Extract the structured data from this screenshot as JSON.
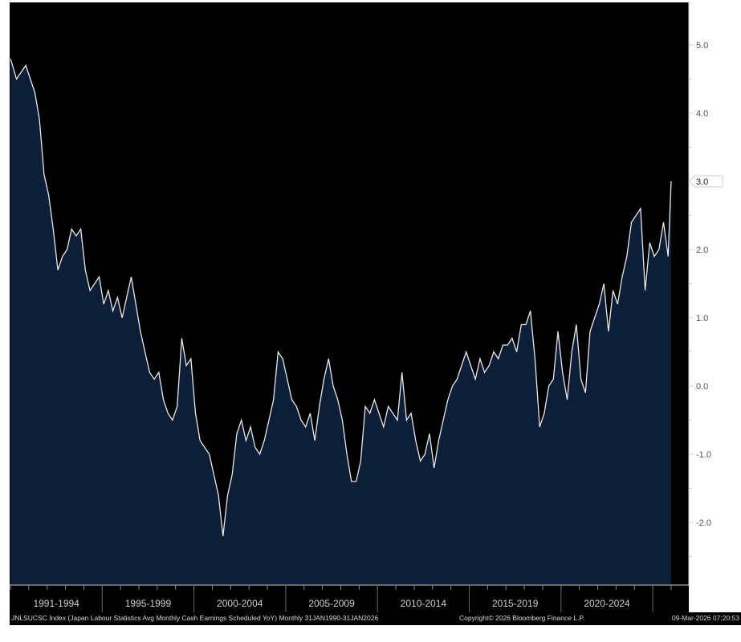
{
  "chart_data": {
    "type": "area",
    "title": "",
    "xlabel": "",
    "ylabel": "",
    "frequency_of_points": "quarterly approximation of monthly series",
    "x_start": "1990-01",
    "x_end": "2026-01",
    "ylim": [
      -2.9,
      5.5
    ],
    "y_ticks": [
      "5.0",
      "4.0",
      "2.0",
      "1.0",
      "0.0",
      "-1.0",
      "-2.0"
    ],
    "last_value_label": "3.0",
    "x_tick_labels": [
      "1991-1994",
      "1995-1999",
      "2000-2004",
      "2005-2009",
      "2010-2014",
      "2015-2019",
      "2020-2024"
    ],
    "grid": false,
    "colors": {
      "background": "#000000",
      "fill": "#0c1e38",
      "line": "#e8e8e8",
      "axis_text": "#cfcfcf"
    },
    "series": [
      {
        "x": [
          "1990-Q1",
          "1990-Q2",
          "1990-Q3",
          "1990-Q4",
          "1991-Q1",
          "1991-Q2",
          "1991-Q3",
          "1991-Q4",
          "1992-Q1",
          "1992-Q2",
          "1992-Q3",
          "1992-Q4",
          "1993-Q1",
          "1993-Q2",
          "1993-Q3",
          "1993-Q4",
          "1994-Q1",
          "1994-Q2",
          "1994-Q3",
          "1994-Q4",
          "1995-Q1",
          "1995-Q2",
          "1995-Q3",
          "1995-Q4",
          "1996-Q1",
          "1996-Q2",
          "1996-Q3",
          "1996-Q4",
          "1997-Q1",
          "1997-Q2",
          "1997-Q3",
          "1997-Q4",
          "1998-Q1",
          "1998-Q2",
          "1998-Q3",
          "1998-Q4",
          "1999-Q1",
          "1999-Q2",
          "1999-Q3",
          "1999-Q4",
          "2000-Q1",
          "2000-Q2",
          "2000-Q3",
          "2000-Q4",
          "2001-Q1",
          "2001-Q2",
          "2001-Q3",
          "2001-Q4",
          "2002-Q1",
          "2002-Q2",
          "2002-Q3",
          "2002-Q4",
          "2003-Q1",
          "2003-Q2",
          "2003-Q3",
          "2003-Q4",
          "2004-Q1",
          "2004-Q2",
          "2004-Q3",
          "2004-Q4",
          "2005-Q1",
          "2005-Q2",
          "2005-Q3",
          "2005-Q4",
          "2006-Q1",
          "2006-Q2",
          "2006-Q3",
          "2006-Q4",
          "2007-Q1",
          "2007-Q2",
          "2007-Q3",
          "2007-Q4",
          "2008-Q1",
          "2008-Q2",
          "2008-Q3",
          "2008-Q4",
          "2009-Q1",
          "2009-Q2",
          "2009-Q3",
          "2009-Q4",
          "2010-Q1",
          "2010-Q2",
          "2010-Q3",
          "2010-Q4",
          "2011-Q1",
          "2011-Q2",
          "2011-Q3",
          "2011-Q4",
          "2012-Q1",
          "2012-Q2",
          "2012-Q3",
          "2012-Q4",
          "2013-Q1",
          "2013-Q2",
          "2013-Q3",
          "2013-Q4",
          "2014-Q1",
          "2014-Q2",
          "2014-Q3",
          "2014-Q4",
          "2015-Q1",
          "2015-Q2",
          "2015-Q3",
          "2015-Q4",
          "2016-Q1",
          "2016-Q2",
          "2016-Q3",
          "2016-Q4",
          "2017-Q1",
          "2017-Q2",
          "2017-Q3",
          "2017-Q4",
          "2018-Q1",
          "2018-Q2",
          "2018-Q3",
          "2018-Q4",
          "2019-Q1",
          "2019-Q2",
          "2019-Q3",
          "2019-Q4",
          "2020-Q1",
          "2020-Q2",
          "2020-Q3",
          "2020-Q4",
          "2021-Q1",
          "2021-Q2",
          "2021-Q3",
          "2021-Q4",
          "2022-Q1",
          "2022-Q2",
          "2022-Q3",
          "2022-Q4",
          "2023-Q1",
          "2023-Q2",
          "2023-Q3",
          "2023-Q4",
          "2024-Q1",
          "2024-Q2",
          "2024-Q3",
          "2024-Q4",
          "2025-Q1",
          "2025-Q2",
          "2025-Q3",
          "2025-Q4",
          "2026-01"
        ],
        "values": [
          4.8,
          4.5,
          4.6,
          4.7,
          4.5,
          4.3,
          3.9,
          3.1,
          2.8,
          2.3,
          1.7,
          1.9,
          2.0,
          2.3,
          2.2,
          2.3,
          1.7,
          1.4,
          1.5,
          1.6,
          1.2,
          1.4,
          1.1,
          1.3,
          1.0,
          1.3,
          1.6,
          1.2,
          0.8,
          0.5,
          0.2,
          0.1,
          0.2,
          -0.2,
          -0.4,
          -0.5,
          -0.3,
          0.7,
          0.3,
          0.4,
          -0.4,
          -0.8,
          -0.9,
          -1.0,
          -1.3,
          -1.6,
          -2.2,
          -1.6,
          -1.3,
          -0.7,
          -0.5,
          -0.8,
          -0.6,
          -0.9,
          -1.0,
          -0.8,
          -0.5,
          -0.2,
          0.5,
          0.4,
          0.1,
          -0.2,
          -0.3,
          -0.5,
          -0.6,
          -0.4,
          -0.8,
          -0.3,
          0.1,
          0.4,
          0.0,
          -0.2,
          -0.5,
          -1.0,
          -1.4,
          -1.4,
          -1.1,
          -0.3,
          -0.4,
          -0.2,
          -0.4,
          -0.6,
          -0.3,
          -0.4,
          -0.5,
          0.2,
          -0.5,
          -0.4,
          -0.8,
          -1.1,
          -1.0,
          -0.7,
          -1.2,
          -0.8,
          -0.5,
          -0.2,
          0.0,
          0.1,
          0.3,
          0.5,
          0.3,
          0.1,
          0.4,
          0.2,
          0.3,
          0.5,
          0.4,
          0.6,
          0.6,
          0.7,
          0.5,
          0.9,
          0.9,
          1.1,
          0.4,
          -0.6,
          -0.4,
          0.0,
          0.1,
          0.8,
          0.2,
          -0.2,
          0.5,
          0.9,
          0.1,
          -0.1,
          0.8,
          1.0,
          1.2,
          1.5,
          0.8,
          1.4,
          1.2,
          1.6,
          1.9,
          2.4,
          2.5,
          2.6,
          1.4,
          2.1,
          1.9,
          2.0,
          2.4,
          1.9,
          3.0
        ]
      }
    ]
  },
  "footer": {
    "description": "JNLSUCSC Index (Japan Labour Statistics Avg Monthly Cash Earnings Scheduled YoY) Monthly 31JAN1990-31JAN2026",
    "copyright": "Copyright© 2026 Bloomberg Finance L.P.",
    "timestamp": "09-Mar-2026 07:20:53"
  }
}
